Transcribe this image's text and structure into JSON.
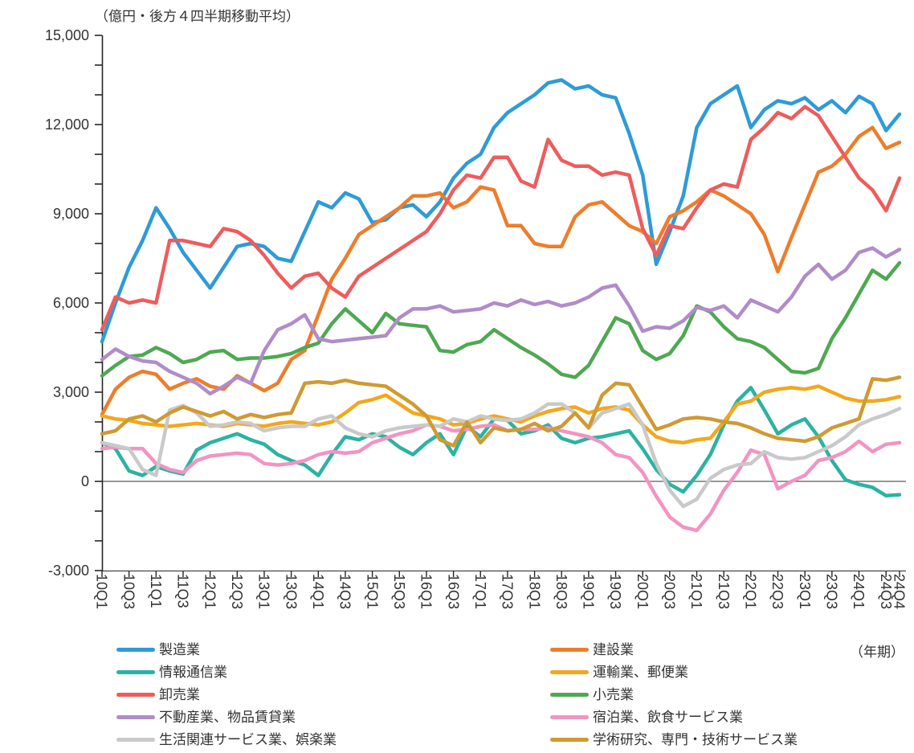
{
  "chart_data": {
    "type": "line",
    "title": "（億円・後方４四半期移動平均）",
    "grid": "zero-line-only",
    "legend_position": "bottom-two-columns",
    "x_axis": {
      "unit_label": "（年期）",
      "tick_labels": [
        "10Q1",
        "10Q3",
        "11Q1",
        "11Q3",
        "12Q1",
        "12Q3",
        "13Q1",
        "13Q3",
        "14Q1",
        "14Q3",
        "15Q1",
        "15Q3",
        "16Q1",
        "16Q3",
        "17Q1",
        "17Q3",
        "18Q1",
        "18Q3",
        "19Q1",
        "19Q3",
        "20Q1",
        "20Q3",
        "21Q1",
        "21Q3",
        "22Q1",
        "22Q3",
        "23Q1",
        "23Q3",
        "24Q1",
        "24Q3",
        "24Q4"
      ],
      "quarters": [
        "10Q1",
        "10Q2",
        "10Q3",
        "10Q4",
        "11Q1",
        "11Q2",
        "11Q3",
        "11Q4",
        "12Q1",
        "12Q2",
        "12Q3",
        "12Q4",
        "13Q1",
        "13Q2",
        "13Q3",
        "13Q4",
        "14Q1",
        "14Q2",
        "14Q3",
        "14Q4",
        "15Q1",
        "15Q2",
        "15Q3",
        "15Q4",
        "16Q1",
        "16Q2",
        "16Q3",
        "16Q4",
        "17Q1",
        "17Q2",
        "17Q3",
        "17Q4",
        "18Q1",
        "18Q2",
        "18Q3",
        "18Q4",
        "19Q1",
        "19Q2",
        "19Q3",
        "19Q4",
        "20Q1",
        "20Q2",
        "20Q3",
        "20Q4",
        "21Q1",
        "21Q2",
        "21Q3",
        "21Q4",
        "22Q1",
        "22Q2",
        "22Q3",
        "22Q4",
        "23Q1",
        "23Q2",
        "23Q3",
        "23Q4",
        "24Q1",
        "24Q2",
        "24Q3",
        "24Q4"
      ]
    },
    "y_axis": {
      "min": -3000,
      "max": 15000,
      "major_step": 3000,
      "minor_step": 1000,
      "tick_values": [
        15000,
        12000,
        9000,
        6000,
        3000,
        0,
        -3000
      ],
      "tick_labels": [
        "15,000",
        "12,000",
        "9,000",
        "6,000",
        "3,000",
        "0",
        "-3,000"
      ]
    },
    "series": [
      {
        "name": "製造業",
        "color": "#2e9bd6",
        "values": [
          4700,
          6000,
          7200,
          8100,
          9200,
          8500,
          7700,
          7100,
          6500,
          7200,
          7900,
          8000,
          7900,
          7500,
          7400,
          8400,
          9400,
          9200,
          9700,
          9500,
          8700,
          8800,
          9200,
          9300,
          8900,
          9400,
          10200,
          10700,
          11000,
          11900,
          12400,
          12700,
          13000,
          13400,
          13500,
          13200,
          13300,
          13000,
          12900,
          11700,
          10300,
          7300,
          8400,
          9600,
          11900,
          12700,
          13000,
          13300,
          11900,
          12500,
          12800,
          12700,
          12900,
          12500,
          12800,
          12400,
          12950,
          12700,
          11800,
          12350
        ]
      },
      {
        "name": "建設業",
        "color": "#ed7d2b",
        "values": [
          2250,
          3100,
          3500,
          3700,
          3600,
          3100,
          3300,
          3450,
          3200,
          3100,
          3550,
          3300,
          3050,
          3300,
          4100,
          4400,
          5600,
          6800,
          7500,
          8300,
          8600,
          8900,
          9200,
          9600,
          9600,
          9700,
          9200,
          9400,
          9900,
          9800,
          8600,
          8600,
          8000,
          7900,
          7900,
          8900,
          9300,
          9400,
          9000,
          8600,
          8400,
          8000,
          8900,
          9100,
          9400,
          9800,
          9600,
          9300,
          9000,
          8300,
          7050,
          8200,
          9300,
          10400,
          10600,
          11000,
          11600,
          11900,
          11200,
          11400
        ]
      },
      {
        "name": "情報通信業",
        "color": "#2bb3a1",
        "values": [
          1300,
          1100,
          350,
          200,
          500,
          350,
          250,
          1050,
          1300,
          1450,
          1600,
          1400,
          1250,
          900,
          700,
          550,
          200,
          900,
          1500,
          1400,
          1600,
          1500,
          1150,
          900,
          1300,
          1600,
          900,
          1850,
          1500,
          2100,
          2050,
          1600,
          1700,
          1900,
          1450,
          1300,
          1450,
          1500,
          1600,
          1700,
          1100,
          400,
          -100,
          -350,
          200,
          900,
          1900,
          2700,
          3150,
          2400,
          1600,
          1900,
          2100,
          1500,
          700,
          50,
          -100,
          -200,
          -480,
          -450
        ]
      },
      {
        "name": "運輸業、郵便業",
        "color": "#f3a71c",
        "values": [
          2200,
          2100,
          2050,
          1950,
          1900,
          1850,
          1900,
          1950,
          1900,
          1850,
          1950,
          1900,
          1850,
          1950,
          2000,
          1950,
          1900,
          2000,
          2300,
          2650,
          2750,
          2900,
          2600,
          2300,
          2200,
          2100,
          1900,
          1950,
          2100,
          2200,
          2100,
          2000,
          2200,
          2350,
          2450,
          2500,
          2300,
          2450,
          2500,
          2400,
          1900,
          1500,
          1350,
          1300,
          1400,
          1450,
          2000,
          2600,
          2700,
          3000,
          3100,
          3150,
          3100,
          3200,
          3000,
          2800,
          2700,
          2700,
          2750,
          2850
        ]
      },
      {
        "name": "卸売業",
        "color": "#ee5c5c",
        "values": [
          5100,
          6200,
          6000,
          6100,
          6000,
          8100,
          8100,
          8000,
          7900,
          8500,
          8400,
          8100,
          7600,
          7000,
          6500,
          6900,
          7000,
          6500,
          6200,
          6900,
          7200,
          7500,
          7800,
          8100,
          8400,
          9000,
          9800,
          10300,
          10200,
          10900,
          10900,
          10100,
          9900,
          11500,
          10800,
          10600,
          10600,
          10300,
          10400,
          10300,
          8500,
          7600,
          8600,
          8500,
          9200,
          9800,
          10000,
          9900,
          11500,
          11900,
          12400,
          12200,
          12600,
          12300,
          11600,
          10900,
          10200,
          9800,
          9100,
          10200
        ]
      },
      {
        "name": "小売業",
        "color": "#4ea852",
        "values": [
          3550,
          3900,
          4200,
          4250,
          4500,
          4300,
          4000,
          4100,
          4350,
          4400,
          4100,
          4150,
          4150,
          4200,
          4300,
          4500,
          4650,
          5300,
          5800,
          5400,
          5000,
          5650,
          5300,
          5250,
          5200,
          4400,
          4350,
          4600,
          4700,
          5100,
          4800,
          4500,
          4250,
          3950,
          3600,
          3500,
          3900,
          4700,
          5500,
          5300,
          4400,
          4100,
          4300,
          4900,
          5900,
          5700,
          5200,
          4800,
          4700,
          4500,
          4100,
          3700,
          3650,
          3800,
          4800,
          5500,
          6300,
          7100,
          6800,
          7350
        ]
      },
      {
        "name": "不動産業、物品賃貸業",
        "color": "#b08cc9",
        "values": [
          4100,
          4450,
          4200,
          4050,
          4000,
          3700,
          3500,
          3300,
          2950,
          3200,
          3500,
          3300,
          4400,
          5100,
          5300,
          5600,
          4800,
          4700,
          4750,
          4800,
          4850,
          4900,
          5500,
          5800,
          5800,
          5900,
          5700,
          5750,
          5800,
          6000,
          5900,
          6100,
          5950,
          6050,
          5900,
          6000,
          6200,
          6500,
          6600,
          5900,
          5050,
          5200,
          5150,
          5400,
          5850,
          5750,
          5900,
          5500,
          6100,
          5900,
          5700,
          6200,
          6900,
          7300,
          6800,
          7100,
          7700,
          7850,
          7550,
          7800
        ]
      },
      {
        "name": "宿泊業、飲食サービス業",
        "color": "#f194c3",
        "values": [
          1100,
          1150,
          1100,
          1100,
          600,
          400,
          300,
          700,
          850,
          900,
          950,
          900,
          600,
          550,
          600,
          700,
          900,
          1000,
          950,
          1000,
          1300,
          1450,
          1600,
          1700,
          1900,
          1850,
          1700,
          1750,
          1850,
          1900,
          1700,
          1750,
          1750,
          1800,
          1700,
          1600,
          1500,
          1300,
          900,
          800,
          300,
          -500,
          -1200,
          -1540,
          -1650,
          -1100,
          -300,
          300,
          1050,
          900,
          -250,
          0,
          200,
          700,
          800,
          1000,
          1350,
          1000,
          1250,
          1300
        ]
      },
      {
        "name": "生活関連サービス業、娯楽業",
        "color": "#c9c9c9",
        "values": [
          1300,
          1200,
          1100,
          400,
          200,
          2400,
          2550,
          2300,
          1850,
          1900,
          2000,
          1950,
          1700,
          1800,
          1850,
          1850,
          2100,
          2200,
          1800,
          1600,
          1500,
          1700,
          1800,
          1850,
          1900,
          1850,
          2100,
          2000,
          2200,
          2100,
          2050,
          2100,
          2300,
          2600,
          2600,
          2300,
          1800,
          2300,
          2450,
          2600,
          1900,
          600,
          -300,
          -840,
          -600,
          100,
          400,
          550,
          600,
          1000,
          800,
          750,
          800,
          1000,
          1200,
          1500,
          1900,
          2100,
          2250,
          2450
        ]
      },
      {
        "name": "学術研究、専門・技術サービス業",
        "color": "#cf9a32",
        "values": [
          1600,
          1700,
          2100,
          2200,
          2000,
          2300,
          2500,
          2350,
          2200,
          2350,
          2100,
          2250,
          2150,
          2250,
          2300,
          3300,
          3350,
          3300,
          3400,
          3300,
          3250,
          3200,
          2900,
          2600,
          2200,
          1400,
          1200,
          2000,
          1300,
          1800,
          1700,
          1750,
          1950,
          1700,
          1850,
          2300,
          1800,
          2900,
          3300,
          3250,
          2500,
          1750,
          1900,
          2100,
          2150,
          2100,
          2000,
          1950,
          1800,
          1600,
          1450,
          1400,
          1350,
          1500,
          1800,
          1950,
          2100,
          3450,
          3400,
          3500
        ]
      }
    ],
    "style": {
      "axis_color": "#262626",
      "zero_line_color": "#595959",
      "label_color": "#333333",
      "line_width": 4.5
    }
  }
}
